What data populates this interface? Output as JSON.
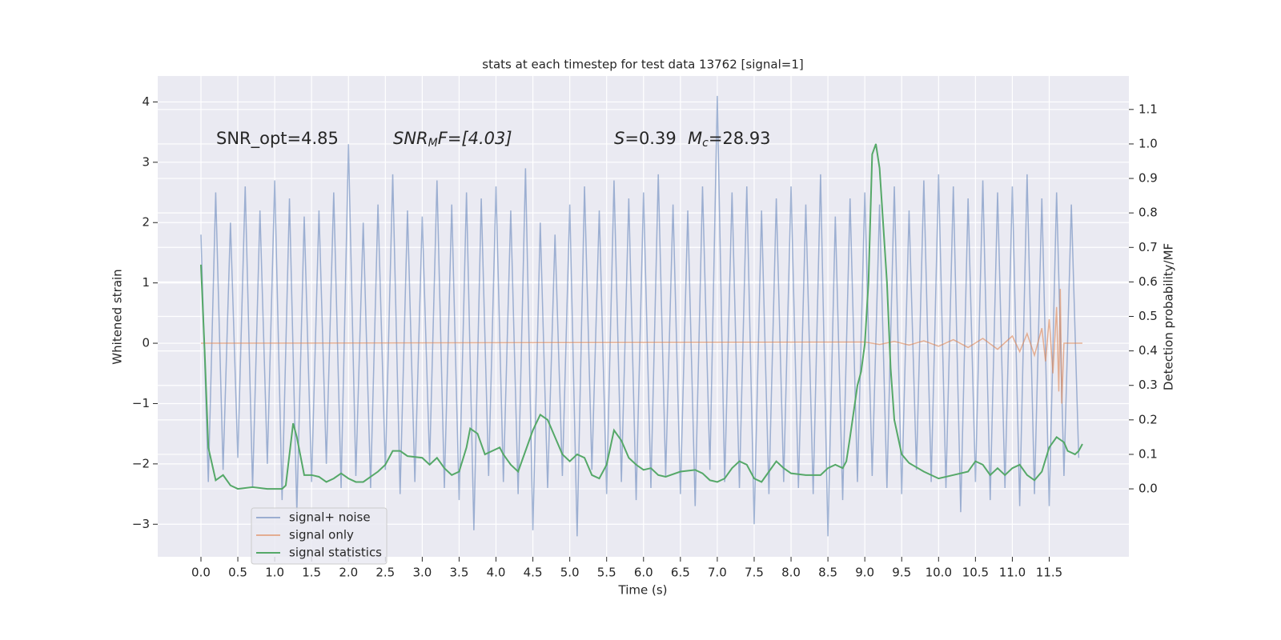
{
  "chart_data": {
    "type": "line",
    "title": "stats at each timestep for test data 13762 [signal=1]",
    "xlabel": "Time (s)",
    "ylabel": "Whitened strain",
    "y2label": "Detection probability/MF",
    "annotations": [
      [
        "SNR_opt=4.85"
      ],
      [
        "SNR",
        "M",
        "F=[4.03]"
      ],
      [
        "S",
        "=0.39"
      ],
      [
        "M",
        "c",
        "=28.93"
      ]
    ],
    "xlim": [
      -0.586,
      12.58
    ],
    "ylim": [
      -3.54,
      4.43
    ],
    "y2lim": [
      -0.197,
      1.197
    ],
    "xticks": [
      {
        "value": 0,
        "label": "0.0"
      },
      {
        "value": 0.5,
        "label": "0.5"
      },
      {
        "value": 1,
        "label": "1.0"
      },
      {
        "value": 1.5,
        "label": "1.5"
      },
      {
        "value": 2,
        "label": "2.0"
      },
      {
        "value": 2.5,
        "label": "2.5"
      },
      {
        "value": 3,
        "label": "3.0"
      },
      {
        "value": 3.5,
        "label": "3.5"
      },
      {
        "value": 4,
        "label": "4.0"
      },
      {
        "value": 4.5,
        "label": "4.5"
      },
      {
        "value": 5,
        "label": "5.0"
      },
      {
        "value": 5.5,
        "label": "5.5"
      },
      {
        "value": 6,
        "label": "6.0"
      },
      {
        "value": 6.5,
        "label": "6.5"
      },
      {
        "value": 7,
        "label": "7.0"
      },
      {
        "value": 7.5,
        "label": "7.5"
      },
      {
        "value": 8,
        "label": "8.0"
      },
      {
        "value": 8.5,
        "label": "8.5"
      },
      {
        "value": 9,
        "label": "9.0"
      },
      {
        "value": 9.5,
        "label": "9.5"
      },
      {
        "value": 10,
        "label": "10.0"
      },
      {
        "value": 10.5,
        "label": "10.5"
      },
      {
        "value": 11,
        "label": "11.0"
      },
      {
        "value": 11.5,
        "label": "11.5"
      }
    ],
    "yticks": [
      {
        "value": -3,
        "label": "−3"
      },
      {
        "value": -2,
        "label": "−2"
      },
      {
        "value": -1,
        "label": "−1"
      },
      0,
      1,
      2,
      3,
      4
    ],
    "y2ticks": [
      {
        "value": 0,
        "label": "0.0"
      },
      {
        "value": 0.1,
        "label": "0.1"
      },
      {
        "value": 0.2,
        "label": "0.2"
      },
      {
        "value": 0.3,
        "label": "0.3"
      },
      {
        "value": 0.4,
        "label": "0.4"
      },
      {
        "value": 0.5,
        "label": "0.5"
      },
      {
        "value": 0.6,
        "label": "0.6"
      },
      {
        "value": 0.7,
        "label": "0.7"
      },
      {
        "value": 0.8,
        "label": "0.8"
      },
      {
        "value": 0.9,
        "label": "0.9"
      },
      {
        "value": 1,
        "label": "1.0"
      },
      {
        "value": 1.1,
        "label": "1.1"
      }
    ],
    "grid": true,
    "legend": "lower left",
    "series": [
      {
        "name": "signal+ noise",
        "color": "#4c72b0",
        "alpha": 0.5,
        "x": [
          0,
          0.1,
          0.2,
          0.3,
          0.4,
          0.5,
          0.6,
          0.7,
          0.8,
          0.9,
          1,
          1.1,
          1.2,
          1.3,
          1.4,
          1.5,
          1.6,
          1.7,
          1.8,
          1.9,
          2,
          2.1,
          2.2,
          2.3,
          2.4,
          2.5,
          2.6,
          2.7,
          2.8,
          2.9,
          3,
          3.1,
          3.2,
          3.3,
          3.4,
          3.5,
          3.6,
          3.7,
          3.8,
          3.9,
          4,
          4.1,
          4.2,
          4.3,
          4.4,
          4.5,
          4.6,
          4.7,
          4.8,
          4.9,
          5,
          5.1,
          5.2,
          5.3,
          5.4,
          5.5,
          5.6,
          5.7,
          5.8,
          5.9,
          6,
          6.1,
          6.2,
          6.3,
          6.4,
          6.5,
          6.6,
          6.7,
          6.8,
          6.9,
          7,
          7.1,
          7.2,
          7.3,
          7.4,
          7.5,
          7.6,
          7.7,
          7.8,
          7.9,
          8,
          8.1,
          8.2,
          8.3,
          8.4,
          8.5,
          8.6,
          8.7,
          8.8,
          8.9,
          9,
          9.1,
          9.2,
          9.3,
          9.4,
          9.5,
          9.6,
          9.7,
          9.8,
          9.9,
          10,
          10.1,
          10.2,
          10.3,
          10.4,
          10.5,
          10.6,
          10.7,
          10.8,
          10.9,
          11,
          11.1,
          11.2,
          11.3,
          11.4,
          11.5,
          11.6,
          11.7,
          11.8,
          11.9
        ],
        "values": [
          1.8,
          -2.3,
          2.5,
          -2.1,
          2.0,
          -1.9,
          2.6,
          -2.4,
          2.2,
          -2.0,
          2.7,
          -2.6,
          2.4,
          -2.8,
          2.1,
          -2.3,
          2.2,
          -2.0,
          2.5,
          -2.4,
          3.3,
          -2.2,
          2.0,
          -2.4,
          2.3,
          -2.1,
          2.8,
          -2.5,
          2.2,
          -2.3,
          2.1,
          -2.0,
          2.7,
          -2.4,
          2.3,
          -2.6,
          2.5,
          -3.1,
          2.4,
          -2.2,
          2.6,
          -2.3,
          2.2,
          -2.5,
          2.9,
          -3.1,
          2.0,
          -2.4,
          1.8,
          -2.2,
          2.3,
          -3.2,
          2.6,
          -2.1,
          2.2,
          -2.5,
          2.7,
          -2.3,
          2.4,
          -2.6,
          2.5,
          -2.4,
          2.8,
          -2.2,
          2.3,
          -2.5,
          2.2,
          -2.7,
          2.6,
          -2.1,
          4.1,
          -2.3,
          2.5,
          -2.4,
          2.6,
          -3.0,
          2.2,
          -2.5,
          2.4,
          -2.3,
          2.6,
          -2.4,
          2.3,
          -2.5,
          2.8,
          -3.2,
          2.1,
          -2.6,
          2.4,
          -2.3,
          2.5,
          -2.2,
          2.3,
          -2.4,
          2.6,
          -2.5,
          2.2,
          -2.1,
          2.7,
          -2.3,
          2.8,
          -2.4,
          2.6,
          -2.8,
          2.4,
          -2.3,
          2.7,
          -2.6,
          2.5,
          -2.4,
          2.6,
          -2.7,
          2.8,
          -2.5,
          2.4,
          -2.7,
          2.5,
          -2.2,
          2.3,
          -1.9
        ]
      },
      {
        "name": "signal only",
        "color": "#dd8452",
        "alpha": 0.6,
        "x": [
          0,
          9.0,
          9.2,
          9.4,
          9.6,
          9.8,
          10.0,
          10.2,
          10.4,
          10.6,
          10.8,
          11.0,
          11.1,
          11.2,
          11.3,
          11.4,
          11.45,
          11.5,
          11.55,
          11.6,
          11.63,
          11.65,
          11.67,
          11.7,
          11.95
        ],
        "values": [
          0,
          0.02,
          -0.02,
          0.03,
          -0.03,
          0.04,
          -0.05,
          0.06,
          -0.07,
          0.08,
          -0.1,
          0.12,
          -0.14,
          0.16,
          -0.2,
          0.25,
          -0.3,
          0.4,
          -0.5,
          0.6,
          -0.8,
          0.9,
          -1.0,
          0,
          0
        ]
      },
      {
        "name": "signal statistics",
        "color": "#55a868",
        "alpha": 1,
        "axis": "y2",
        "x": [
          0,
          0.05,
          0.1,
          0.2,
          0.3,
          0.4,
          0.5,
          0.7,
          0.9,
          1.1,
          1.15,
          1.2,
          1.25,
          1.3,
          1.4,
          1.5,
          1.6,
          1.7,
          1.8,
          1.9,
          2.0,
          2.1,
          2.2,
          2.3,
          2.4,
          2.5,
          2.6,
          2.7,
          2.8,
          3.0,
          3.1,
          3.2,
          3.3,
          3.4,
          3.5,
          3.6,
          3.65,
          3.75,
          3.85,
          3.95,
          4.05,
          4.1,
          4.2,
          4.3,
          4.4,
          4.5,
          4.6,
          4.7,
          4.8,
          4.9,
          5.0,
          5.1,
          5.2,
          5.3,
          5.4,
          5.5,
          5.6,
          5.7,
          5.8,
          5.9,
          6.0,
          6.1,
          6.2,
          6.3,
          6.5,
          6.7,
          6.8,
          6.9,
          7.0,
          7.1,
          7.2,
          7.3,
          7.4,
          7.5,
          7.6,
          7.7,
          7.8,
          7.9,
          8.0,
          8.2,
          8.4,
          8.5,
          8.6,
          8.7,
          8.75,
          8.8,
          8.9,
          8.95,
          9.0,
          9.05,
          9.1,
          9.15,
          9.2,
          9.3,
          9.35,
          9.4,
          9.5,
          9.6,
          9.8,
          10.0,
          10.2,
          10.4,
          10.5,
          10.6,
          10.7,
          10.8,
          10.9,
          11.0,
          11.1,
          11.2,
          11.3,
          11.4,
          11.5,
          11.6,
          11.7,
          11.75,
          11.85,
          11.9,
          11.95
        ],
        "values": [
          0.65,
          0.4,
          0.12,
          0.025,
          0.04,
          0.01,
          0.0,
          0.005,
          0.0,
          0.0,
          0.01,
          0.1,
          0.19,
          0.15,
          0.04,
          0.04,
          0.035,
          0.02,
          0.03,
          0.045,
          0.03,
          0.02,
          0.02,
          0.035,
          0.05,
          0.07,
          0.11,
          0.11,
          0.095,
          0.09,
          0.07,
          0.09,
          0.06,
          0.04,
          0.05,
          0.12,
          0.175,
          0.16,
          0.1,
          0.11,
          0.12,
          0.1,
          0.07,
          0.05,
          0.11,
          0.17,
          0.215,
          0.2,
          0.15,
          0.1,
          0.08,
          0.1,
          0.09,
          0.04,
          0.03,
          0.07,
          0.17,
          0.14,
          0.09,
          0.07,
          0.055,
          0.06,
          0.04,
          0.035,
          0.05,
          0.055,
          0.045,
          0.025,
          0.02,
          0.03,
          0.06,
          0.08,
          0.07,
          0.03,
          0.02,
          0.05,
          0.08,
          0.06,
          0.045,
          0.04,
          0.04,
          0.06,
          0.07,
          0.06,
          0.08,
          0.15,
          0.3,
          0.34,
          0.42,
          0.6,
          0.97,
          1.0,
          0.93,
          0.6,
          0.35,
          0.2,
          0.1,
          0.075,
          0.05,
          0.03,
          0.04,
          0.05,
          0.08,
          0.07,
          0.04,
          0.06,
          0.04,
          0.06,
          0.07,
          0.04,
          0.025,
          0.05,
          0.12,
          0.15,
          0.135,
          0.11,
          0.1,
          0.11,
          0.13
        ]
      }
    ]
  }
}
